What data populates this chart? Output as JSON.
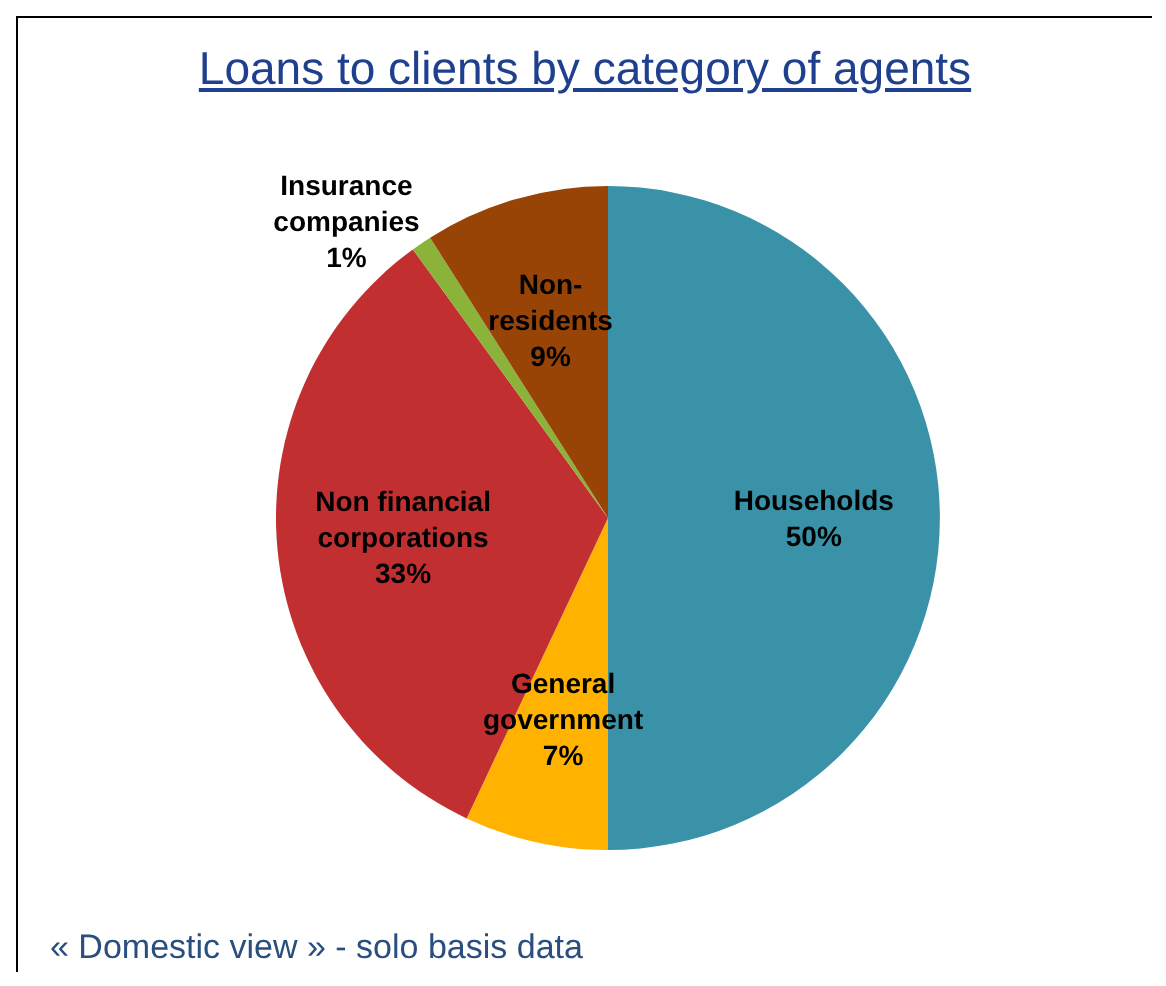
{
  "chart_data": {
    "type": "pie",
    "title": "Loans to clients by category of agents",
    "categories": [
      "Households",
      "General government",
      "Non financial corporations",
      "Insurance companies",
      "Non-residents"
    ],
    "values": [
      50,
      7,
      33,
      1,
      9
    ],
    "value_labels": [
      "50%",
      "7%",
      "33%",
      "1%",
      "9%"
    ],
    "colors": [
      "#3a92a8",
      "#ffb300",
      "#c22f30",
      "#8bb33a",
      "#984407"
    ],
    "legend": false,
    "annotations": [
      "« Domestic view » - solo basis data"
    ]
  }
}
